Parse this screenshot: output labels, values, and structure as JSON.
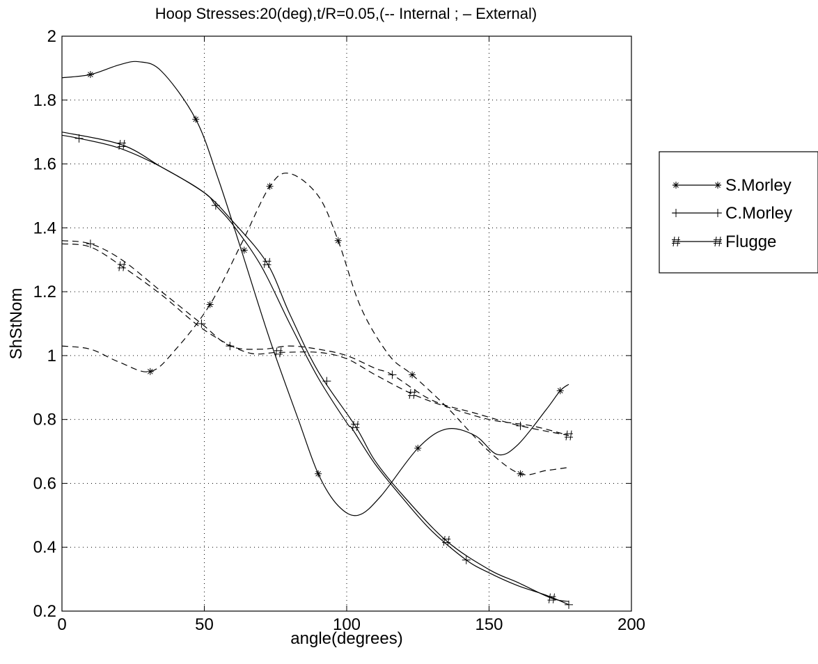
{
  "chart_data": {
    "type": "line",
    "title": "Hoop Stresses:20(deg),t/R=0.05,(-- Internal ; – External)",
    "xlabel": "angle(degrees)",
    "ylabel": "ShStNom",
    "xlim": [
      0,
      200
    ],
    "ylim": [
      0.2,
      2
    ],
    "xticks": [
      0,
      50,
      100,
      150,
      200
    ],
    "yticks": [
      0.2,
      0.4,
      0.6,
      0.8,
      1,
      1.2,
      1.4,
      1.6,
      1.8,
      2
    ],
    "xtick_labels": [
      "0",
      "50",
      "100",
      "150",
      "200"
    ],
    "ytick_labels": [
      "0.2",
      "0.4",
      "0.6",
      "0.8",
      "1",
      "1.2",
      "1.4",
      "1.6",
      "1.8",
      "2"
    ],
    "grid": true,
    "legend_position": "outside-right",
    "series": [
      {
        "name": "S.Morley",
        "surface": "External",
        "linestyle": "solid",
        "marker": "*",
        "x": [
          0,
          10,
          20,
          27,
          35,
          47,
          55,
          63,
          73,
          83,
          90,
          97,
          104,
          112,
          125,
          135,
          145,
          153,
          160,
          170,
          175,
          178
        ],
        "y": [
          1.87,
          1.88,
          1.91,
          1.92,
          1.89,
          1.74,
          1.55,
          1.33,
          1.05,
          0.8,
          0.63,
          0.53,
          0.5,
          0.56,
          0.71,
          0.77,
          0.75,
          0.69,
          0.72,
          0.83,
          0.89,
          0.91
        ],
        "marker_x": [
          10,
          47,
          64,
          90,
          125,
          175
        ],
        "marker_y": [
          1.88,
          1.74,
          1.33,
          0.63,
          0.71,
          0.89
        ]
      },
      {
        "name": "C.Morley",
        "surface": "External",
        "linestyle": "solid",
        "marker": "+",
        "x": [
          0,
          6,
          20,
          35,
          50,
          54,
          60,
          70,
          80,
          90,
          100,
          102,
          110,
          120,
          130,
          142,
          150,
          160,
          170,
          178
        ],
        "y": [
          1.69,
          1.68,
          1.65,
          1.59,
          1.51,
          1.47,
          1.41,
          1.28,
          1.1,
          0.93,
          0.79,
          0.77,
          0.66,
          0.55,
          0.45,
          0.36,
          0.32,
          0.28,
          0.25,
          0.22
        ],
        "marker_x": [
          6,
          54,
          93,
          142,
          178
        ],
        "marker_y": [
          1.68,
          1.47,
          0.92,
          0.36,
          0.22
        ]
      },
      {
        "name": "Flugge",
        "surface": "External",
        "linestyle": "solid",
        "marker": "#",
        "x": [
          0,
          21,
          35,
          50,
          60,
          72,
          80,
          90,
          103,
          110,
          120,
          135,
          150,
          160,
          172,
          178
        ],
        "y": [
          1.7,
          1.66,
          1.59,
          1.51,
          1.42,
          1.29,
          1.13,
          0.95,
          0.78,
          0.67,
          0.56,
          0.42,
          0.33,
          0.29,
          0.24,
          0.23
        ],
        "marker_x": [
          21,
          72,
          103,
          135,
          172
        ],
        "marker_y": [
          1.66,
          1.29,
          0.78,
          0.42,
          0.24
        ]
      },
      {
        "name": "S.Morley",
        "surface": "Internal",
        "linestyle": "dashed",
        "marker": "*",
        "x": [
          0,
          10,
          20,
          31,
          40,
          52,
          63,
          73,
          80,
          90,
          97,
          105,
          115,
          123,
          135,
          150,
          161,
          170,
          178
        ],
        "y": [
          1.03,
          1.02,
          0.98,
          0.95,
          1.02,
          1.16,
          1.35,
          1.53,
          1.57,
          1.5,
          1.36,
          1.15,
          1.0,
          0.94,
          0.84,
          0.7,
          0.63,
          0.64,
          0.65
        ],
        "marker_x": [
          31,
          52,
          73,
          97,
          123,
          161
        ],
        "marker_y": [
          0.95,
          1.16,
          1.53,
          1.36,
          0.94,
          0.63
        ]
      },
      {
        "name": "C.Morley",
        "surface": "Internal",
        "linestyle": "dashed",
        "marker": "+",
        "x": [
          0,
          10,
          21,
          35,
          49,
          59,
          70,
          80,
          90,
          100,
          110,
          116,
          130,
          145,
          161,
          178
        ],
        "y": [
          1.36,
          1.35,
          1.3,
          1.2,
          1.1,
          1.03,
          1.02,
          1.03,
          1.02,
          1.0,
          0.96,
          0.94,
          0.86,
          0.82,
          0.78,
          0.75
        ],
        "marker_x": [
          10,
          49,
          59,
          116,
          161
        ],
        "marker_y": [
          1.35,
          1.1,
          1.03,
          0.94,
          0.78
        ]
      },
      {
        "name": "Flugge",
        "surface": "Internal",
        "linestyle": "dashed",
        "marker": "#",
        "x": [
          0,
          10,
          21,
          35,
          50,
          65,
          76,
          90,
          100,
          110,
          123,
          135,
          150,
          165,
          178
        ],
        "y": [
          1.35,
          1.34,
          1.28,
          1.19,
          1.08,
          1.01,
          1.01,
          1.01,
          0.99,
          0.94,
          0.88,
          0.84,
          0.8,
          0.78,
          0.75
        ],
        "marker_x": [
          21,
          76,
          123,
          178
        ],
        "marker_y": [
          1.28,
          1.01,
          0.88,
          0.75
        ]
      }
    ],
    "legend": [
      {
        "label": "S.Morley",
        "marker": "*"
      },
      {
        "label": "C.Morley",
        "marker": "+"
      },
      {
        "label": "Flugge",
        "marker": "#"
      }
    ]
  }
}
